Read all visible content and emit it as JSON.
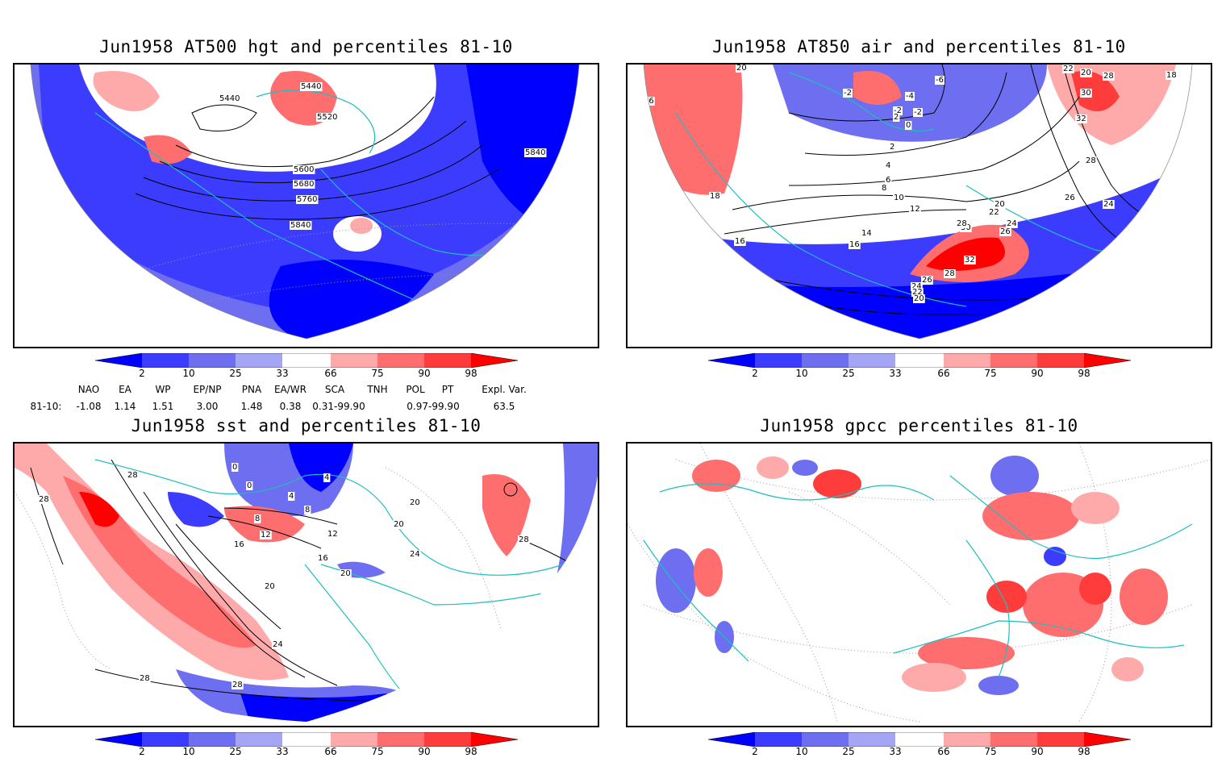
{
  "panels": [
    {
      "title": "Jun1958 AT500 hgt and percentiles 81-10",
      "contour_labels": [
        "5440",
        "5440",
        "5520",
        "5600",
        "5680",
        "5760",
        "5840",
        "5840"
      ]
    },
    {
      "title": "Jun1958 AT850 air and percentiles 81-10",
      "contour_labels": [
        "20",
        "16",
        "18",
        "16",
        "-2",
        "-4",
        "-6",
        "-2",
        "2",
        "0",
        "-2",
        "2",
        "4",
        "6",
        "8",
        "10",
        "12",
        "14",
        "16",
        "22",
        "20",
        "28",
        "18",
        "30",
        "32",
        "28",
        "26",
        "24",
        "16",
        "20",
        "22",
        "24",
        "26",
        "30",
        "28",
        "32",
        "28",
        "26",
        "24",
        "22",
        "20",
        "18",
        "16"
      ]
    },
    {
      "title": "Jun1958 sst and percentiles 81-10",
      "contour_labels": [
        "28",
        "28",
        "0",
        "0",
        "4",
        "4",
        "8",
        "8",
        "12",
        "12",
        "16",
        "16",
        "20",
        "20",
        "20",
        "20",
        "24",
        "24",
        "28",
        "28",
        "28",
        "24"
      ]
    },
    {
      "title": "Jun1958 gpcc percentiles 81-10",
      "contour_labels": []
    }
  ],
  "colorbar": {
    "labels": [
      "2",
      "10",
      "25",
      "33",
      "66",
      "75",
      "90",
      "98"
    ],
    "colors": [
      "#0000ff",
      "#3c3cff",
      "#6e6ef0",
      "#a5a5f5",
      "#ffffff",
      "#ffaaaa",
      "#ff6e6e",
      "#ff3c3c",
      "#ff0000"
    ]
  },
  "indices": {
    "headers": [
      "NAO",
      "EA",
      "WP",
      "EP/NP",
      "PNA",
      "EA/WR",
      "SCA",
      "TNH",
      "POL",
      "PT",
      "Expl. Var."
    ],
    "row_label": "81-10:",
    "values": [
      "-1.08",
      "1.14",
      "1.51",
      "3.00",
      "1.48",
      "0.38",
      "0.31-99.90",
      "0.97-99.90",
      "63.5"
    ]
  },
  "map_colors": {
    "coastline": "#1ebebe",
    "anomaly_blue": "#3c3cff",
    "anomaly_red": "#ff4646"
  }
}
